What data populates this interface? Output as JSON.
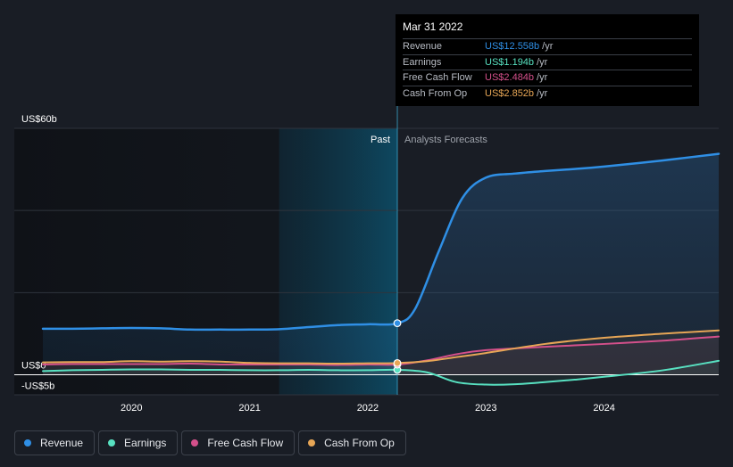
{
  "chart_data": {
    "type": "line",
    "title": "",
    "y_axis": {
      "min": -5,
      "max": 60,
      "labels": [
        {
          "value": 60,
          "text": "US$60b"
        },
        {
          "value": 0,
          "text": "US$0"
        },
        {
          "value": -5,
          "text": "-US$5b"
        }
      ]
    },
    "x_axis": {
      "min": 2019.25,
      "max": 2024.97,
      "ticks": [
        {
          "value": 2020,
          "text": "2020"
        },
        {
          "value": 2021,
          "text": "2021"
        },
        {
          "value": 2022,
          "text": "2022"
        },
        {
          "value": 2023,
          "text": "2023"
        },
        {
          "value": 2024,
          "text": "2024"
        }
      ]
    },
    "past_label": "Past",
    "forecast_label": "Analysts Forecasts",
    "divider_x": 2022.25,
    "highlight_start_x": 2021.25,
    "series": [
      {
        "name": "Revenue",
        "color": "#2f8fe5",
        "area": true,
        "points": [
          [
            2019.25,
            11.2
          ],
          [
            2019.5,
            11.2
          ],
          [
            2019.75,
            11.3
          ],
          [
            2020.0,
            11.4
          ],
          [
            2020.25,
            11.3
          ],
          [
            2020.5,
            11.0
          ],
          [
            2020.75,
            11.0
          ],
          [
            2021.0,
            11.0
          ],
          [
            2021.25,
            11.1
          ],
          [
            2021.5,
            11.6
          ],
          [
            2021.75,
            12.1
          ],
          [
            2022.0,
            12.3
          ],
          [
            2022.25,
            12.558
          ],
          [
            2022.4,
            16.0
          ],
          [
            2022.6,
            30.0
          ],
          [
            2022.8,
            43.0
          ],
          [
            2023.0,
            48.0
          ],
          [
            2023.25,
            49.0
          ],
          [
            2023.5,
            49.6
          ],
          [
            2023.75,
            50.1
          ],
          [
            2024.0,
            50.7
          ],
          [
            2024.5,
            52.2
          ],
          [
            2024.97,
            53.8
          ]
        ]
      },
      {
        "name": "Earnings",
        "color": "#58e1c1",
        "area": false,
        "points": [
          [
            2019.25,
            0.9
          ],
          [
            2019.5,
            1.1
          ],
          [
            2019.75,
            1.2
          ],
          [
            2020.0,
            1.3
          ],
          [
            2020.25,
            1.3
          ],
          [
            2020.5,
            1.2
          ],
          [
            2020.75,
            1.2
          ],
          [
            2021.0,
            1.1
          ],
          [
            2021.25,
            1.1
          ],
          [
            2021.5,
            1.2
          ],
          [
            2021.75,
            1.1
          ],
          [
            2022.0,
            1.1
          ],
          [
            2022.25,
            1.194
          ],
          [
            2022.5,
            0.6
          ],
          [
            2022.75,
            -1.8
          ],
          [
            2023.0,
            -2.4
          ],
          [
            2023.25,
            -2.3
          ],
          [
            2023.5,
            -1.8
          ],
          [
            2023.75,
            -1.2
          ],
          [
            2024.0,
            -0.5
          ],
          [
            2024.5,
            1.1
          ],
          [
            2024.97,
            3.4
          ]
        ]
      },
      {
        "name": "Free Cash Flow",
        "color": "#d4508b",
        "area": false,
        "points": [
          [
            2019.25,
            2.5
          ],
          [
            2019.5,
            2.6
          ],
          [
            2019.75,
            2.6
          ],
          [
            2020.0,
            2.6
          ],
          [
            2020.25,
            2.6
          ],
          [
            2020.5,
            2.7
          ],
          [
            2020.75,
            2.5
          ],
          [
            2021.0,
            2.5
          ],
          [
            2021.25,
            2.5
          ],
          [
            2021.5,
            2.5
          ],
          [
            2021.75,
            2.4
          ],
          [
            2022.0,
            2.5
          ],
          [
            2022.25,
            2.484
          ],
          [
            2022.5,
            3.5
          ],
          [
            2022.75,
            5.0
          ],
          [
            2023.0,
            6.0
          ],
          [
            2023.5,
            6.8
          ],
          [
            2024.0,
            7.5
          ],
          [
            2024.5,
            8.3
          ],
          [
            2024.97,
            9.3
          ]
        ]
      },
      {
        "name": "Cash From Op",
        "color": "#e7a656",
        "area": false,
        "points": [
          [
            2019.25,
            3.0
          ],
          [
            2019.5,
            3.1
          ],
          [
            2019.75,
            3.1
          ],
          [
            2020.0,
            3.3
          ],
          [
            2020.25,
            3.2
          ],
          [
            2020.5,
            3.3
          ],
          [
            2020.75,
            3.2
          ],
          [
            2021.0,
            2.9
          ],
          [
            2021.25,
            2.8
          ],
          [
            2021.5,
            2.8
          ],
          [
            2021.75,
            2.7
          ],
          [
            2022.0,
            2.8
          ],
          [
            2022.25,
            2.852
          ],
          [
            2022.5,
            3.3
          ],
          [
            2022.75,
            4.3
          ],
          [
            2023.0,
            5.3
          ],
          [
            2023.5,
            7.5
          ],
          [
            2024.0,
            9.0
          ],
          [
            2024.5,
            10.0
          ],
          [
            2024.97,
            10.8
          ]
        ]
      }
    ]
  },
  "tooltip": {
    "date": "Mar 31 2022",
    "rows": [
      {
        "label": "Revenue",
        "value": "US$12.558b",
        "unit": "/yr",
        "color": "#2f8fe5"
      },
      {
        "label": "Earnings",
        "value": "US$1.194b",
        "unit": "/yr",
        "color": "#58e1c1"
      },
      {
        "label": "Free Cash Flow",
        "value": "US$2.484b",
        "unit": "/yr",
        "color": "#d4508b"
      },
      {
        "label": "Cash From Op",
        "value": "US$2.852b",
        "unit": "/yr",
        "color": "#e7a656"
      }
    ]
  },
  "legend": [
    {
      "label": "Revenue",
      "color": "#2f8fe5"
    },
    {
      "label": "Earnings",
      "color": "#58e1c1"
    },
    {
      "label": "Free Cash Flow",
      "color": "#d4508b"
    },
    {
      "label": "Cash From Op",
      "color": "#e7a656"
    }
  ]
}
